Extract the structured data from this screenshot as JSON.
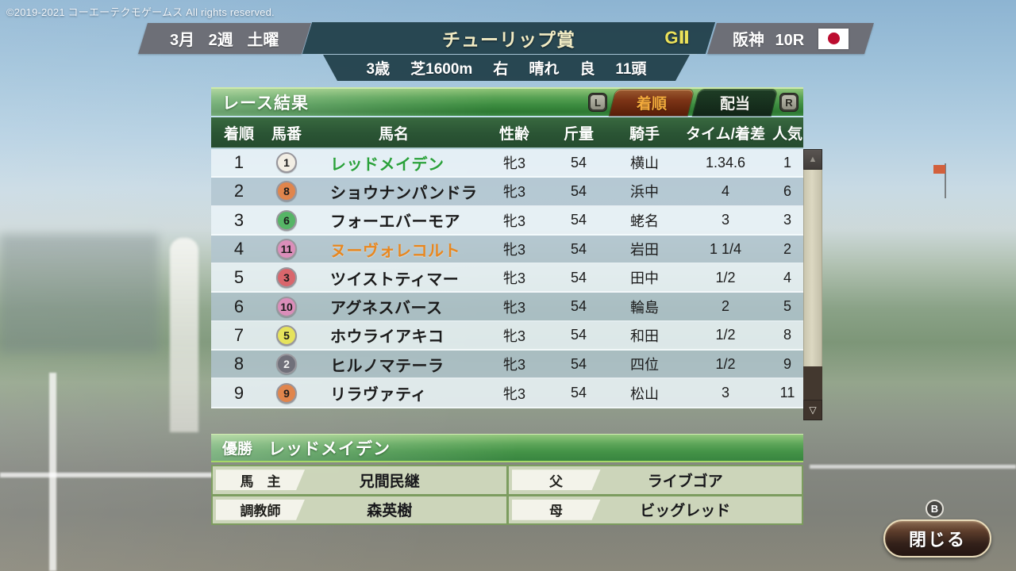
{
  "copyright": "©2019-2021 コーエーテクモゲームス All rights reserved.",
  "header": {
    "date": "3月 2週 土曜",
    "race_name": "チューリップ賞",
    "grade": "GⅡ",
    "venue": "阪神 10R",
    "flag": "japan-flag",
    "conditions": {
      "age": "3歳",
      "course": "芝1600m",
      "direction": "右",
      "weather": "晴れ",
      "going": "良",
      "field_size": "11頭"
    }
  },
  "results_panel": {
    "title": "レース結果",
    "left_bumper": "L",
    "right_bumper": "R",
    "tabs": [
      {
        "label": "着順",
        "active": true
      },
      {
        "label": "配当",
        "active": false
      }
    ],
    "columns": [
      "着順",
      "馬番",
      "馬名",
      "性齢",
      "斤量",
      "騎手",
      "タイム/着差",
      "人気"
    ],
    "rows": [
      {
        "rank": "1",
        "num": "1",
        "num_color": "#f2eee4",
        "num_text_color": "#1c1c1c",
        "name": "レッドメイデン",
        "name_color": "#2aa13a",
        "sex_age": "牝3",
        "weight": "54",
        "jockey": "横山",
        "time_margin": "1.34.6",
        "popularity": "1"
      },
      {
        "rank": "2",
        "num": "8",
        "num_color": "#e0854c",
        "num_text_color": "#1c1c1c",
        "name": "ショウナンパンドラ",
        "name_color": "",
        "sex_age": "牝3",
        "weight": "54",
        "jockey": "浜中",
        "time_margin": "4",
        "popularity": "6"
      },
      {
        "rank": "3",
        "num": "6",
        "num_color": "#56b566",
        "num_text_color": "#1c1c1c",
        "name": "フォーエバーモア",
        "name_color": "",
        "sex_age": "牝3",
        "weight": "54",
        "jockey": "蛯名",
        "time_margin": "3",
        "popularity": "3"
      },
      {
        "rank": "4",
        "num": "11",
        "num_color": "#db8eba",
        "num_text_color": "#1c1c1c",
        "name": "ヌーヴォレコルト",
        "name_color": "#e8871f",
        "sex_age": "牝3",
        "weight": "54",
        "jockey": "岩田",
        "time_margin": "1 1/4",
        "popularity": "2"
      },
      {
        "rank": "5",
        "num": "3",
        "num_color": "#d9666c",
        "num_text_color": "#1c1c1c",
        "name": "ツイストティマー",
        "name_color": "",
        "sex_age": "牝3",
        "weight": "54",
        "jockey": "田中",
        "time_margin": "1/2",
        "popularity": "4"
      },
      {
        "rank": "6",
        "num": "10",
        "num_color": "#db8eba",
        "num_text_color": "#1c1c1c",
        "name": "アグネスバース",
        "name_color": "",
        "sex_age": "牝3",
        "weight": "54",
        "jockey": "輪島",
        "time_margin": "2",
        "popularity": "5"
      },
      {
        "rank": "7",
        "num": "5",
        "num_color": "#e6e35c",
        "num_text_color": "#1c1c1c",
        "name": "ホウライアキコ",
        "name_color": "",
        "sex_age": "牝3",
        "weight": "54",
        "jockey": "和田",
        "time_margin": "1/2",
        "popularity": "8"
      },
      {
        "rank": "8",
        "num": "2",
        "num_color": "#70707a",
        "num_text_color": "#f2f2f2",
        "name": "ヒルノマテーラ",
        "name_color": "",
        "sex_age": "牝3",
        "weight": "54",
        "jockey": "四位",
        "time_margin": "1/2",
        "popularity": "9"
      },
      {
        "rank": "9",
        "num": "9",
        "num_color": "#e0854c",
        "num_text_color": "#1c1c1c",
        "name": "リラヴァティ",
        "name_color": "",
        "sex_age": "牝3",
        "weight": "54",
        "jockey": "松山",
        "time_margin": "3",
        "popularity": "11"
      }
    ]
  },
  "winner_panel": {
    "label": "優勝",
    "name": "レッドメイデン",
    "details": [
      {
        "label": "馬　主",
        "value": "兄間民継"
      },
      {
        "label": "父",
        "value": "ライブゴア"
      },
      {
        "label": "調教師",
        "value": "森英樹"
      },
      {
        "label": "母",
        "value": "ビッグレッド"
      }
    ]
  },
  "close_button": {
    "label": "閉じる",
    "gamepad_hint": "B"
  },
  "colors": {
    "panel_green": "#3c8c40",
    "header_teal": "#23424c",
    "active_tab_bg": "#7c3416",
    "active_tab_text": "#f2aa3c",
    "grade_text": "#ece25a",
    "winner_text_green": "#2aa13a",
    "rival_text_orange": "#e8871f",
    "flag_red": "#bc0c2f"
  }
}
